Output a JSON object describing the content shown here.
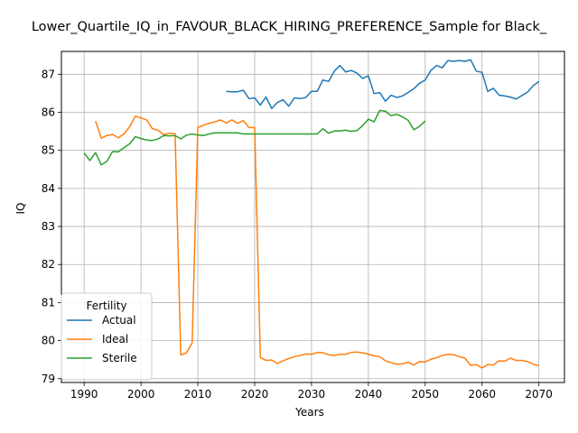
{
  "chart_data": {
    "type": "line",
    "title": "Lower_Quartile_IQ_in_FAVOUR_BLACK_HIRING_PREFERENCE_Sample for Black_",
    "xlabel": "Years",
    "ylabel": "IQ",
    "xlim": [
      1986,
      2074.5
    ],
    "ylim": [
      78.9,
      87.6
    ],
    "xticks": [
      1990,
      2000,
      2010,
      2020,
      2030,
      2040,
      2050,
      2060,
      2070
    ],
    "yticks": [
      79,
      80,
      81,
      82,
      83,
      84,
      85,
      86,
      87
    ],
    "grid": true,
    "legend": {
      "title": "Fertility",
      "position": "lower-left"
    },
    "series": [
      {
        "name": "Actual",
        "color": "#1f77b4",
        "x": [
          2015,
          2016,
          2017,
          2018,
          2019,
          2020,
          2021,
          2022,
          2023,
          2024,
          2025,
          2026,
          2027,
          2028,
          2029,
          2030,
          2031,
          2032,
          2033,
          2034,
          2035,
          2036,
          2037,
          2038,
          2039,
          2040,
          2041,
          2042,
          2043,
          2044,
          2045,
          2046,
          2047,
          2048,
          2049,
          2050,
          2051,
          2052,
          2053,
          2054,
          2055,
          2056,
          2057,
          2058,
          2059,
          2060,
          2061,
          2062,
          2063,
          2064,
          2065,
          2066,
          2067,
          2068,
          2069,
          2070
        ],
        "values": [
          86.55,
          86.54,
          86.54,
          86.58,
          86.36,
          86.38,
          86.19,
          86.4,
          86.1,
          86.26,
          86.33,
          86.16,
          86.38,
          86.36,
          86.39,
          86.55,
          86.55,
          86.85,
          86.81,
          87.08,
          87.23,
          87.06,
          87.1,
          87.03,
          86.89,
          86.96,
          86.49,
          86.52,
          86.29,
          86.45,
          86.39,
          86.43,
          86.52,
          86.62,
          86.76,
          86.85,
          87.1,
          87.23,
          87.17,
          87.36,
          87.34,
          87.36,
          87.34,
          87.38,
          87.08,
          87.05,
          86.55,
          86.63,
          86.45,
          86.43,
          86.4,
          86.35,
          86.44,
          86.53,
          86.7,
          86.81
        ]
      },
      {
        "name": "Ideal",
        "color": "#ff7f0e",
        "x": [
          1992,
          1993,
          1994,
          1995,
          1996,
          1997,
          1998,
          1999,
          2000,
          2001,
          2002,
          2003,
          2004,
          2005,
          2006,
          2007,
          2008,
          2009,
          2010,
          2011,
          2012,
          2013,
          2014,
          2015,
          2016,
          2017,
          2018,
          2019,
          2020,
          2021,
          2022,
          2023,
          2024,
          2025,
          2026,
          2027,
          2028,
          2029,
          2030,
          2031,
          2032,
          2033,
          2034,
          2035,
          2036,
          2037,
          2038,
          2039,
          2040,
          2041,
          2042,
          2043,
          2044,
          2045,
          2046,
          2047,
          2048,
          2049,
          2050,
          2051,
          2052,
          2053,
          2054,
          2055,
          2056,
          2057,
          2058,
          2059,
          2060,
          2061,
          2062,
          2063,
          2064,
          2065,
          2066,
          2067,
          2068,
          2069,
          2070
        ],
        "values": [
          85.77,
          85.32,
          85.39,
          85.42,
          85.33,
          85.43,
          85.62,
          85.9,
          85.85,
          85.8,
          85.57,
          85.53,
          85.41,
          85.45,
          85.44,
          79.62,
          79.68,
          79.94,
          85.6,
          85.66,
          85.71,
          85.75,
          85.8,
          85.72,
          85.8,
          85.71,
          85.78,
          85.6,
          85.6,
          79.56,
          79.48,
          79.49,
          79.4,
          79.47,
          79.53,
          79.58,
          79.61,
          79.65,
          79.64,
          79.69,
          79.68,
          79.63,
          79.61,
          79.64,
          79.64,
          79.69,
          79.7,
          79.68,
          79.64,
          79.6,
          79.58,
          79.47,
          79.42,
          79.38,
          79.39,
          79.43,
          79.36,
          79.45,
          79.44,
          79.51,
          79.55,
          79.61,
          79.64,
          79.63,
          79.58,
          79.54,
          79.35,
          79.37,
          79.28,
          79.37,
          79.36,
          79.47,
          79.46,
          79.54,
          79.48,
          79.48,
          79.45,
          79.38,
          79.34
        ]
      },
      {
        "name": "Sterile",
        "color": "#2ca02c",
        "x": [
          1990,
          1991,
          1992,
          1993,
          1994,
          1995,
          1996,
          1997,
          1998,
          1999,
          2000,
          2001,
          2002,
          2003,
          2004,
          2005,
          2006,
          2007,
          2008,
          2009,
          2010,
          2011,
          2012,
          2013,
          2014,
          2015,
          2016,
          2017,
          2018,
          2019,
          2020,
          2021,
          2022,
          2023,
          2024,
          2025,
          2026,
          2027,
          2028,
          2029,
          2030,
          2031,
          2032,
          2033,
          2034,
          2035,
          2036,
          2037,
          2038,
          2039,
          2040,
          2041,
          2042,
          2043,
          2044,
          2045,
          2046,
          2047,
          2048,
          2049,
          2050
        ],
        "values": [
          84.93,
          84.73,
          84.94,
          84.62,
          84.71,
          84.97,
          84.96,
          85.07,
          85.17,
          85.36,
          85.31,
          85.27,
          85.26,
          85.3,
          85.39,
          85.38,
          85.39,
          85.3,
          85.4,
          85.43,
          85.4,
          85.39,
          85.43,
          85.46,
          85.46,
          85.46,
          85.46,
          85.46,
          85.43,
          85.43,
          85.43,
          85.43,
          85.43,
          85.43,
          85.43,
          85.43,
          85.43,
          85.43,
          85.43,
          85.43,
          85.43,
          85.43,
          85.57,
          85.45,
          85.51,
          85.51,
          85.53,
          85.5,
          85.52,
          85.65,
          85.82,
          85.75,
          86.05,
          86.03,
          85.91,
          85.95,
          85.88,
          85.79,
          85.54,
          85.63,
          85.77
        ]
      }
    ]
  }
}
